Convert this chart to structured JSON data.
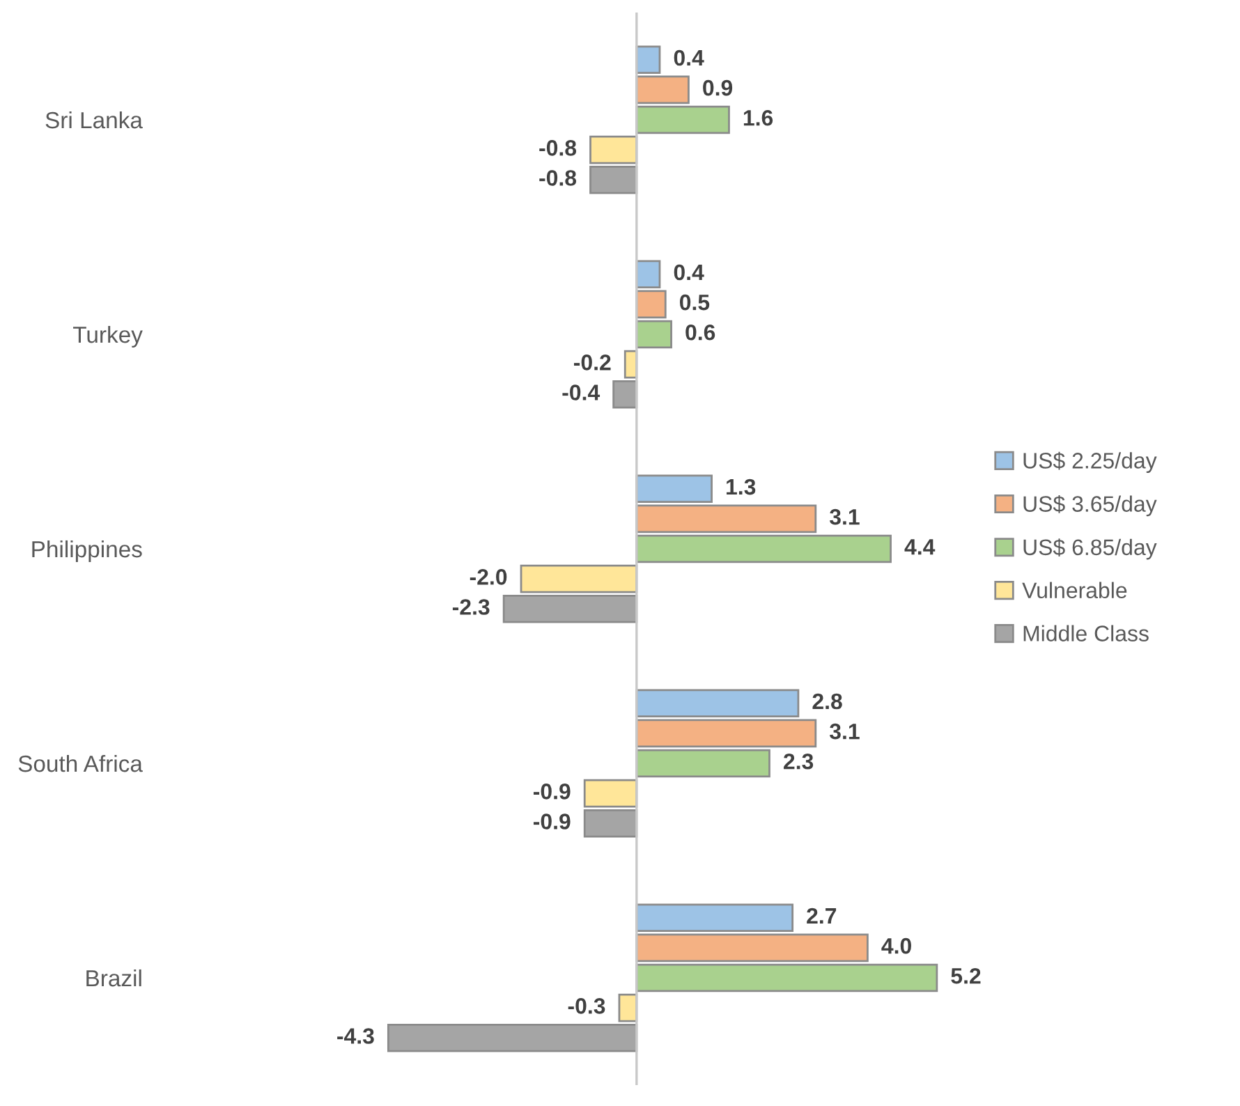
{
  "chart_data": {
    "type": "bar",
    "orientation": "horizontal",
    "categories": [
      "Sri Lanka",
      "Turkey",
      "Philippines",
      "South Africa",
      "Brazil"
    ],
    "series": [
      {
        "name": "US$ 2.25/day",
        "color": "#9dc3e6",
        "values": [
          0.4,
          0.4,
          1.3,
          2.8,
          2.7
        ],
        "value_labels": [
          "0.4",
          "0.4",
          "1.3",
          "2.8",
          "2.7"
        ]
      },
      {
        "name": "US$ 3.65/day",
        "color": "#f4b183",
        "values": [
          0.9,
          0.5,
          3.1,
          3.1,
          4.0
        ],
        "value_labels": [
          "0.9",
          "0.5",
          "3.1",
          "3.1",
          "4.0"
        ]
      },
      {
        "name": "US$ 6.85/day",
        "color": "#a9d18e",
        "values": [
          1.6,
          0.6,
          4.4,
          2.3,
          5.2
        ],
        "value_labels": [
          "1.6",
          "0.6",
          "4.4",
          "2.3",
          "5.2"
        ]
      },
      {
        "name": "Vulnerable",
        "color": "#ffe699",
        "values": [
          -0.8,
          -0.2,
          -2.0,
          -0.9,
          -0.3
        ],
        "value_labels": [
          "-0.8",
          "-0.2",
          "-2.0",
          "-0.9",
          "-0.3"
        ]
      },
      {
        "name": "Middle Class",
        "color": "#a5a5a5",
        "values": [
          -0.8,
          -0.4,
          -2.3,
          -0.9,
          -4.3
        ],
        "value_labels": [
          "-0.8",
          "-0.4",
          "-2.3",
          "-0.9",
          "-4.3"
        ]
      }
    ],
    "legend": "right",
    "tick_labels": "y",
    "grid": false
  }
}
